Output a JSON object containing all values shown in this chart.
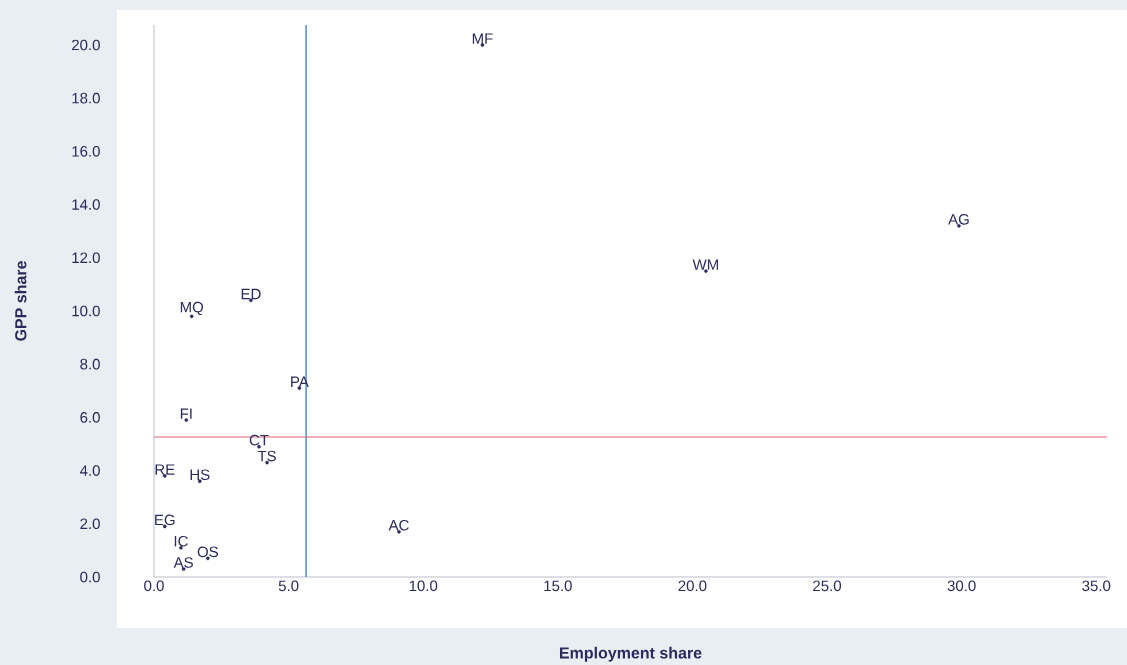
{
  "chart_data": {
    "type": "scatter",
    "xlabel": "Employment share",
    "ylabel": "GPP share",
    "xlim": [
      0,
      35.4
    ],
    "ylim": [
      0,
      20.75
    ],
    "xticks": [
      {
        "value": 0,
        "label": "0.0"
      },
      {
        "value": 5,
        "label": "5.0"
      },
      {
        "value": 10,
        "label": "10.0"
      },
      {
        "value": 15,
        "label": "15.0"
      },
      {
        "value": 20,
        "label": "20.0"
      },
      {
        "value": 25,
        "label": "25.0"
      },
      {
        "value": 30,
        "label": "30.0"
      },
      {
        "value": 35,
        "label": "35.0"
      }
    ],
    "yticks": [
      {
        "value": 0,
        "label": "0.0"
      },
      {
        "value": 2,
        "label": "2.0"
      },
      {
        "value": 4,
        "label": "4.0"
      },
      {
        "value": 6,
        "label": "6.0"
      },
      {
        "value": 8,
        "label": "8.0"
      },
      {
        "value": 10,
        "label": "10.0"
      },
      {
        "value": 12,
        "label": "12.0"
      },
      {
        "value": 14,
        "label": "14.0"
      },
      {
        "value": 16,
        "label": "16.0"
      },
      {
        "value": 18,
        "label": "18.0"
      },
      {
        "value": 20,
        "label": "20.0"
      }
    ],
    "marker": "circle",
    "grid": false,
    "series": [
      {
        "name": "MF",
        "color": "#2b2a5c",
        "x": [
          12.2
        ],
        "values": [
          20.0
        ]
      },
      {
        "name": "AG",
        "color": "#2b2a5c",
        "x": [
          29.9
        ],
        "values": [
          13.2
        ]
      },
      {
        "name": "WM",
        "color": "#2b2a5c",
        "x": [
          20.5
        ],
        "values": [
          11.5
        ]
      },
      {
        "name": "ED",
        "color": "#2b2a5c",
        "x": [
          3.6
        ],
        "values": [
          10.4
        ]
      },
      {
        "name": "MQ",
        "color": "#2b2a5c",
        "x": [
          1.4
        ],
        "values": [
          9.8
        ]
      },
      {
        "name": "PA",
        "color": "#2b2a5c",
        "x": [
          5.4
        ],
        "values": [
          7.1
        ]
      },
      {
        "name": "FI",
        "color": "#2b2a5c",
        "x": [
          1.2
        ],
        "values": [
          5.9
        ]
      },
      {
        "name": "CT",
        "color": "#2b2a5c",
        "x": [
          3.9
        ],
        "values": [
          4.9
        ]
      },
      {
        "name": "TS",
        "color": "#2b2a5c",
        "x": [
          4.2
        ],
        "values": [
          4.3
        ]
      },
      {
        "name": "RE",
        "color": "#2b2a5c",
        "x": [
          0.4
        ],
        "values": [
          3.8
        ]
      },
      {
        "name": "HS",
        "color": "#2b2a5c",
        "x": [
          1.7
        ],
        "values": [
          3.6
        ]
      },
      {
        "name": "EG",
        "color": "#2b2a5c",
        "x": [
          0.4
        ],
        "values": [
          1.9
        ]
      },
      {
        "name": "AC",
        "color": "#2b2a5c",
        "x": [
          9.1
        ],
        "values": [
          1.7
        ]
      },
      {
        "name": "IC",
        "color": "#2b2a5c",
        "x": [
          1.0
        ],
        "values": [
          1.1
        ]
      },
      {
        "name": "OS",
        "color": "#2b2a5c",
        "x": [
          2.0
        ],
        "values": [
          0.7
        ]
      },
      {
        "name": "AS",
        "color": "#2b2a5c",
        "x": [
          1.1
        ],
        "values": [
          0.3
        ]
      }
    ],
    "ref_lines": [
      {
        "axis": "x",
        "value": 5.65,
        "color": "#3a7abf"
      },
      {
        "axis": "y",
        "value": 5.26,
        "color": "#e06070"
      }
    ]
  }
}
